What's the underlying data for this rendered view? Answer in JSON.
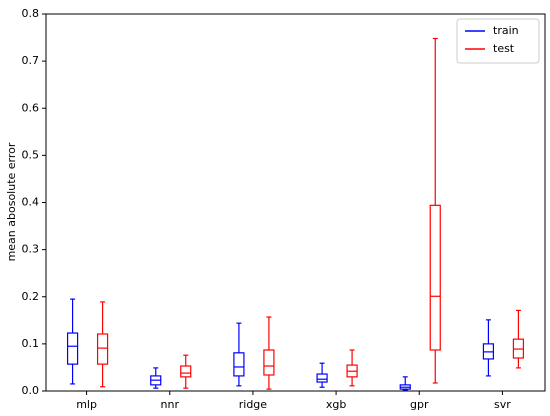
{
  "chart_data": {
    "type": "box",
    "ylabel": "mean abosolute error",
    "categories": [
      "mlp",
      "nnr",
      "ridge",
      "xgb",
      "gpr",
      "svr"
    ],
    "ylim": [
      0,
      0.8
    ],
    "yticks": [
      {
        "value": 0,
        "label": "0.0"
      },
      0.1,
      0.2,
      0.3,
      0.4,
      0.5,
      0.6,
      0.7,
      0.8
    ],
    "legend": "upper right",
    "series": [
      {
        "name": "train",
        "color": "#0000ff",
        "values": [
          {
            "min": 0.015,
            "q1": 0.057,
            "median": 0.095,
            "q3": 0.123,
            "max": 0.195
          },
          {
            "min": 0.006,
            "q1": 0.013,
            "median": 0.023,
            "q3": 0.032,
            "max": 0.049
          },
          {
            "min": 0.011,
            "q1": 0.032,
            "median": 0.051,
            "q3": 0.081,
            "max": 0.144
          },
          {
            "min": 0.008,
            "q1": 0.019,
            "median": 0.025,
            "q3": 0.036,
            "max": 0.059
          },
          {
            "min": 0.002,
            "q1": 0.004,
            "median": 0.008,
            "q3": 0.013,
            "max": 0.03
          },
          {
            "min": 0.032,
            "q1": 0.068,
            "median": 0.083,
            "q3": 0.1,
            "max": 0.151
          }
        ]
      },
      {
        "name": "test",
        "color": "#ff0000",
        "values": [
          {
            "min": 0.009,
            "q1": 0.057,
            "median": 0.091,
            "q3": 0.121,
            "max": 0.189
          },
          {
            "min": 0.006,
            "q1": 0.03,
            "median": 0.038,
            "q3": 0.053,
            "max": 0.076
          },
          {
            "min": 0.004,
            "q1": 0.034,
            "median": 0.053,
            "q3": 0.087,
            "max": 0.157
          },
          {
            "min": 0.011,
            "q1": 0.03,
            "median": 0.042,
            "q3": 0.055,
            "max": 0.087
          },
          {
            "min": 0.017,
            "q1": 0.087,
            "median": 0.201,
            "q3": 0.394,
            "max": 0.748
          },
          {
            "min": 0.049,
            "q1": 0.07,
            "median": 0.089,
            "q3": 0.11,
            "max": 0.171
          }
        ]
      }
    ]
  }
}
